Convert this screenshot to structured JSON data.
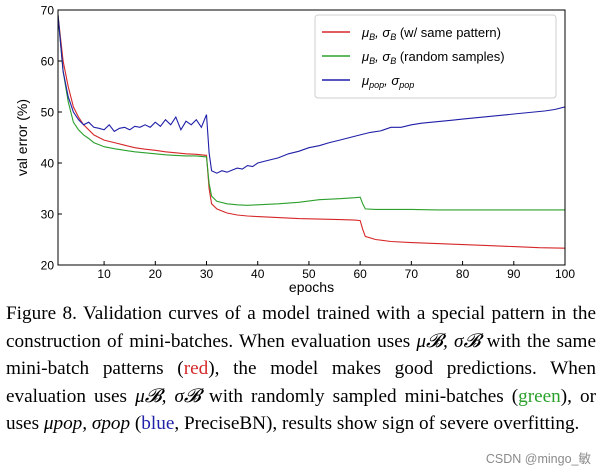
{
  "chart_data": {
    "type": "line",
    "title": "",
    "xlabel": "epochs",
    "ylabel": "val error (%)",
    "xlim": [
      1,
      100
    ],
    "ylim": [
      20,
      70
    ],
    "xticks": [
      10,
      20,
      30,
      40,
      50,
      60,
      70,
      80,
      90,
      100
    ],
    "yticks": [
      20,
      30,
      40,
      50,
      60,
      70
    ],
    "grid": false,
    "legend_position": "top-right",
    "series": [
      {
        "name": "μB, σB (w/ same pattern)",
        "legend": {
          "main1": "μ",
          "sub1": "B",
          "main2": ", σ",
          "sub2": "B",
          "rest": " (w/ same pattern)"
        },
        "color": "#d62728",
        "x": [
          1,
          2,
          3,
          4,
          5,
          6,
          7,
          8,
          10,
          12,
          14,
          16,
          18,
          20,
          22,
          24,
          26,
          28,
          30,
          30.5,
          31,
          32,
          34,
          36,
          38,
          40,
          44,
          48,
          52,
          56,
          59,
          60,
          60.5,
          61,
          63,
          66,
          70,
          75,
          80,
          85,
          90,
          95,
          100
        ],
        "y": [
          69,
          60,
          55,
          51,
          49,
          47.5,
          46.5,
          45.5,
          44.5,
          44,
          43.5,
          43,
          42.7,
          42.5,
          42.2,
          42,
          41.8,
          41.7,
          41.5,
          35,
          32,
          31,
          30.2,
          29.8,
          29.6,
          29.5,
          29.3,
          29.1,
          29,
          28.9,
          28.8,
          28.7,
          27,
          25.6,
          25,
          24.6,
          24.4,
          24.2,
          24,
          23.8,
          23.6,
          23.4,
          23.3
        ]
      },
      {
        "name": "μB, σB (random samples)",
        "legend": {
          "main1": "μ",
          "sub1": "B",
          "main2": ", σ",
          "sub2": "B",
          "rest": " (random samples)"
        },
        "color": "#2ca02c",
        "x": [
          1,
          2,
          3,
          4,
          5,
          6,
          7,
          8,
          10,
          12,
          14,
          16,
          18,
          20,
          22,
          24,
          26,
          28,
          30,
          30.5,
          31,
          32,
          34,
          36,
          38,
          40,
          44,
          48,
          52,
          56,
          59,
          60,
          60.5,
          61,
          63,
          66,
          70,
          75,
          80,
          85,
          90,
          95,
          100
        ],
        "y": [
          69,
          58,
          52,
          48,
          46.5,
          45.5,
          44.8,
          44,
          43.2,
          42.8,
          42.5,
          42.2,
          42,
          41.8,
          41.6,
          41.5,
          41.4,
          41.4,
          41.2,
          36,
          33.5,
          32.5,
          32,
          31.8,
          31.7,
          31.8,
          32,
          32.3,
          32.8,
          33,
          33.2,
          33.3,
          32,
          31,
          30.9,
          30.9,
          30.9,
          30.8,
          30.8,
          30.8,
          30.8,
          30.8,
          30.8
        ]
      },
      {
        "name": "μpop, σpop",
        "legend": {
          "main1": "μ",
          "sub1": "pop",
          "main2": ", σ",
          "sub2": "pop",
          "rest": ""
        },
        "color": "#1f1fa8",
        "x": [
          1,
          2,
          3,
          4,
          5,
          6,
          7,
          8,
          9,
          10,
          11,
          12,
          13,
          14,
          15,
          16,
          17,
          18,
          19,
          20,
          21,
          22,
          23,
          24,
          25,
          26,
          27,
          28,
          29,
          30,
          30.5,
          31,
          32,
          33,
          34,
          35,
          36,
          37,
          38,
          39,
          40,
          42,
          44,
          46,
          48,
          50,
          52,
          54,
          56,
          58,
          60,
          62,
          64,
          66,
          68,
          70,
          72,
          74,
          76,
          78,
          80,
          82,
          84,
          86,
          88,
          90,
          92,
          94,
          96,
          98,
          100
        ],
        "y": [
          69,
          58,
          53,
          50,
          48.5,
          47.5,
          48,
          47,
          46.8,
          46.5,
          47.5,
          46.2,
          46.8,
          47,
          46.5,
          47.2,
          47,
          47.5,
          47,
          48,
          47.2,
          48.5,
          47.5,
          49,
          46.5,
          48.2,
          47.5,
          48.5,
          47,
          49.5,
          42,
          38.5,
          38,
          38.5,
          38.2,
          38.6,
          39,
          38.8,
          39.5,
          39.3,
          40,
          40.5,
          41,
          41.8,
          42.3,
          43,
          43.4,
          44,
          44.5,
          45,
          45.5,
          46,
          46.3,
          47,
          47,
          47.5,
          47.8,
          48,
          48.2,
          48.4,
          48.6,
          48.8,
          49,
          49.2,
          49.4,
          49.6,
          49.8,
          50,
          50.2,
          50.5,
          51
        ]
      }
    ]
  },
  "caption": {
    "p1": "Figure 8. Validation curves of a model trained with a special pattern in the construction of mini-batches. When evaluation uses ",
    "m1": "μ𝓑, σ𝓑",
    "p2": " with the same mini-batch patterns (",
    "red": "red",
    "p3": "), the model makes good predictions. When evaluation uses ",
    "m2": "μ𝓑, σ𝓑",
    "p4": " with randomly sampled mini-batches (",
    "green": "green",
    "p5": "), or uses ",
    "m3": "μpop, σpop",
    "p6": " (",
    "blue": "blue",
    "p7": ", PreciseBN), results show sign of severe overfitting."
  },
  "watermark": "CSDN @mingo_敏"
}
